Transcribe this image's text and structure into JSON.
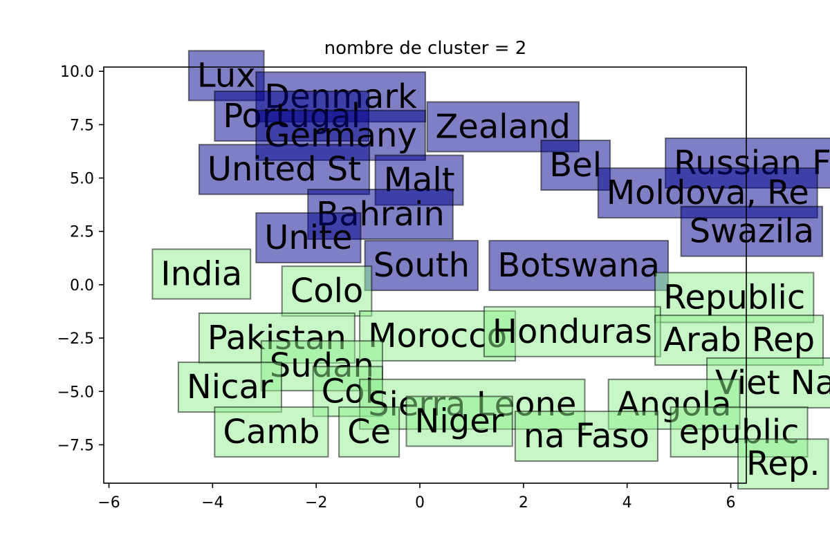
{
  "chart_data": {
    "type": "scatter",
    "title": "nombre de cluster = 2",
    "xlabel": "",
    "ylabel": "",
    "xlim": [
      -6.1,
      6.3
    ],
    "ylim": [
      -9.3,
      10.2
    ],
    "xticks": [
      -6,
      -4,
      -2,
      0,
      2,
      4,
      6
    ],
    "yticks": [
      -7.5,
      -5.0,
      -2.5,
      0.0,
      2.5,
      5.0,
      7.5,
      10.0
    ],
    "xtick_labels": [
      "−6",
      "−4",
      "−2",
      "0",
      "2",
      "4",
      "6"
    ],
    "ytick_labels": [
      "−7.5",
      "−5.0",
      "−2.5",
      "0.0",
      "2.5",
      "5.0",
      "7.5",
      "10.0"
    ],
    "grid": false,
    "clusters": [
      {
        "color": "#00008b",
        "points": [
          {
            "label": "Lux",
            "x": -4.3,
            "y": 9.8
          },
          {
            "label": "Denmark",
            "x": -3.0,
            "y": 8.8
          },
          {
            "label": "Portugal",
            "x": -3.8,
            "y": 7.9
          },
          {
            "label": "Germany",
            "x": -3.0,
            "y": 7.0
          },
          {
            "label": "Zealand",
            "x": 0.3,
            "y": 7.4
          },
          {
            "label": "United St",
            "x": -4.1,
            "y": 5.4
          },
          {
            "label": "Malt",
            "x": -0.7,
            "y": 4.9
          },
          {
            "label": "Bel",
            "x": 2.5,
            "y": 5.6
          },
          {
            "label": "Russian Fe",
            "x": 4.9,
            "y": 5.7
          },
          {
            "label": "Moldova, Re",
            "x": 3.6,
            "y": 4.3
          },
          {
            "label": "Bahrain",
            "x": -2.0,
            "y": 3.3
          },
          {
            "label": "Unite",
            "x": -3.0,
            "y": 2.2
          },
          {
            "label": "Swazila",
            "x": 5.2,
            "y": 2.5
          },
          {
            "label": "South",
            "x": -0.9,
            "y": 0.9
          },
          {
            "label": "Botswana",
            "x": 1.5,
            "y": 0.9
          }
        ]
      },
      {
        "color": "#90ee90",
        "points": [
          {
            "label": "India",
            "x": -5.0,
            "y": 0.5
          },
          {
            "label": "Colo",
            "x": -2.5,
            "y": -0.3
          },
          {
            "label": "Republic",
            "x": 4.7,
            "y": -0.6
          },
          {
            "label": "Pakistan",
            "x": -4.1,
            "y": -2.5
          },
          {
            "label": "Morocco",
            "x": -1.0,
            "y": -2.4
          },
          {
            "label": "Honduras",
            "x": 1.4,
            "y": -2.2
          },
          {
            "label": "Arab Rep",
            "x": 4.7,
            "y": -2.6
          },
          {
            "label": "Sudan",
            "x": -2.9,
            "y": -3.8
          },
          {
            "label": "Nicar",
            "x": -4.5,
            "y": -4.8
          },
          {
            "label": "Viet Nam",
            "x": 5.7,
            "y": -4.6
          },
          {
            "label": "Col",
            "x": -1.9,
            "y": -5.0
          },
          {
            "label": "Sierra Leone",
            "x": -1.0,
            "y": -5.6
          },
          {
            "label": "Angola",
            "x": 3.8,
            "y": -5.6
          },
          {
            "label": "Niger",
            "x": -0.1,
            "y": -6.4
          },
          {
            "label": "Camb",
            "x": -3.8,
            "y": -6.9
          },
          {
            "label": "Ce",
            "x": -1.4,
            "y": -6.9
          },
          {
            "label": "na Faso",
            "x": 2.0,
            "y": -7.1
          },
          {
            "label": "epublic",
            "x": 5.0,
            "y": -6.9
          },
          {
            "label": "Rep.",
            "x": 6.3,
            "y": -8.4
          }
        ]
      }
    ]
  }
}
